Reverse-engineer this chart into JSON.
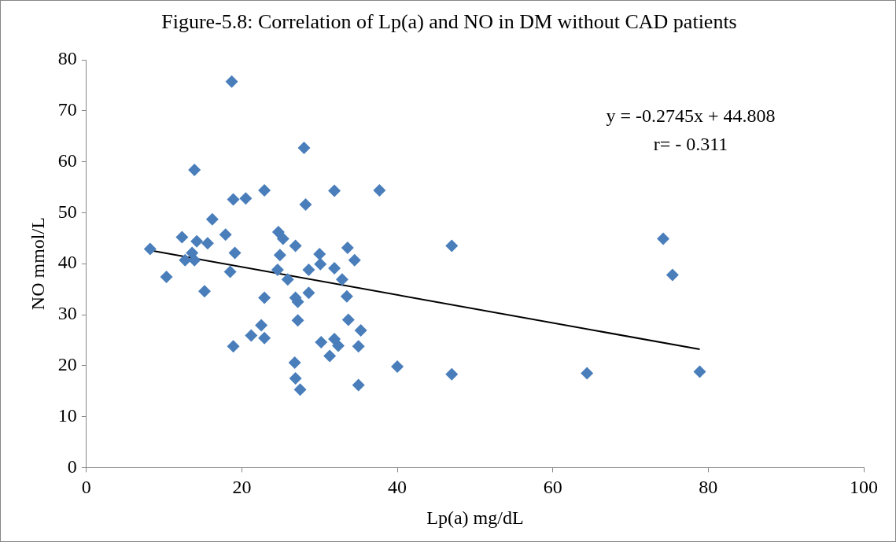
{
  "chart_data": {
    "type": "scatter",
    "title": "Figure-5.8: Correlation of Lp(a) and NO in DM without CAD patients",
    "xlabel": "Lp(a) mg/dL",
    "ylabel": "NO mmol/L",
    "annotations": [
      "y = -0.2745x + 44.808",
      "r= - 0.311"
    ],
    "xlim": [
      0,
      100
    ],
    "xticks": [
      0,
      20,
      40,
      60,
      80,
      100
    ],
    "ylim": [
      0,
      80
    ],
    "yticks": [
      0,
      10,
      20,
      30,
      40,
      50,
      60,
      70,
      80
    ],
    "grid": false,
    "legend": false,
    "marker": "diamond",
    "series": [
      {
        "type": "scatter",
        "color": "#4a7ebb",
        "x": [
          8.2,
          12.3,
          14.2,
          15.6,
          17.9,
          13.6,
          12.7,
          13.9,
          19.1,
          10.3,
          18.5,
          15.2,
          24.7,
          25.3,
          26.9,
          24.9,
          30.0,
          30.1,
          33.6,
          34.5,
          24.6,
          25.9,
          28.6,
          31.9,
          32.9,
          22.9,
          26.9,
          27.2,
          28.6,
          33.5,
          27.2,
          33.7,
          35.3,
          22.5,
          21.2,
          22.9,
          18.9,
          30.2,
          31.9,
          32.4,
          31.3,
          35.0,
          40.0,
          26.8,
          26.9,
          27.5,
          35.0,
          18.7,
          28.0,
          13.9,
          22.9,
          31.9,
          37.7,
          18.9,
          20.5,
          28.2,
          16.2,
          47.0,
          74.2,
          75.4,
          47.0,
          64.4,
          78.9
        ],
        "values": [
          42.9,
          45.2,
          44.4,
          44.0,
          45.7,
          42.1,
          40.7,
          40.7,
          42.1,
          37.4,
          38.4,
          34.6,
          46.2,
          44.9,
          43.5,
          41.7,
          41.9,
          39.9,
          43.1,
          40.7,
          38.8,
          36.9,
          38.8,
          39.1,
          36.9,
          33.3,
          33.3,
          32.5,
          34.3,
          33.6,
          28.9,
          29.0,
          26.9,
          27.9,
          25.9,
          25.4,
          23.8,
          24.6,
          25.2,
          23.9,
          21.9,
          23.8,
          19.8,
          20.6,
          17.5,
          15.3,
          16.2,
          75.7,
          62.7,
          58.4,
          54.4,
          54.3,
          54.4,
          52.6,
          52.8,
          51.6,
          48.7,
          43.5,
          44.9,
          37.8,
          18.3,
          18.5,
          18.8
        ]
      },
      {
        "type": "line",
        "color": "#000000",
        "x": [
          8.2,
          78.9
        ],
        "values": [
          42.6,
          23.2
        ],
        "marker": "none"
      }
    ]
  }
}
